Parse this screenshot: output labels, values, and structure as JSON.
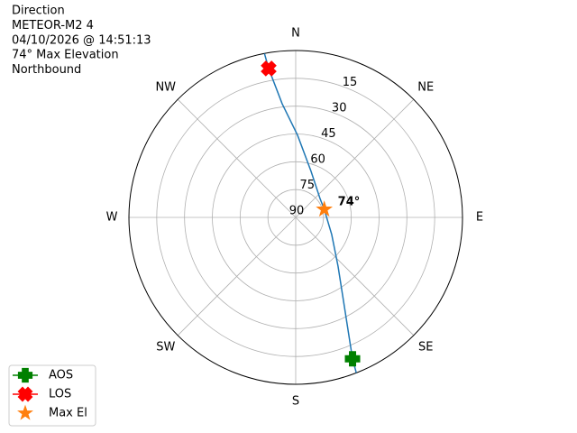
{
  "chart_data": {
    "type": "polar",
    "texts": [
      "Direction",
      "METEOR-M2 4",
      "04/10/2026 @ 14:51:13",
      "74° Max Elevation",
      "Northbound"
    ],
    "rlim": [
      90,
      0
    ],
    "rticks": [
      15,
      30,
      45,
      60,
      75,
      90
    ],
    "thetaticks": [
      {
        "value": 0,
        "label": "N"
      },
      {
        "value": 45,
        "label": "NE"
      },
      {
        "value": 90,
        "label": "E"
      },
      {
        "value": 135,
        "label": "SE"
      },
      {
        "value": 180,
        "label": "S"
      },
      {
        "value": 225,
        "label": "SW"
      },
      {
        "value": 270,
        "label": "W"
      },
      {
        "value": 315,
        "label": "NW"
      }
    ],
    "grid": true,
    "track": {
      "color": "#1f77b4",
      "azimuth": [
        349.2,
        349.7,
        353.2,
        1.3,
        18.4,
        52.1,
        74.3,
        115.4,
        139.0,
        151.4,
        158.1,
        158.7
      ],
      "elevation": [
        0,
        8.4,
        28.3,
        45.7,
        63.8,
        73.4,
        74,
        68.5,
        55.2,
        35.1,
        7.8,
        0
      ]
    },
    "markers": [
      {
        "name": "AOS",
        "color": "#008000",
        "marker": "plus",
        "azimuth": [
          158.1
        ],
        "elevation": [
          7.8
        ]
      },
      {
        "name": "LOS",
        "color": "#ff0000",
        "marker": "x",
        "azimuth": [
          349.7
        ],
        "elevation": [
          8.4
        ]
      },
      {
        "name": "Max El",
        "color": "#ff7f0e",
        "marker": "star",
        "azimuth": [
          74.3
        ],
        "elevation": [
          74
        ],
        "value_labels": [
          "74°"
        ]
      }
    ],
    "legend": "lower left"
  }
}
